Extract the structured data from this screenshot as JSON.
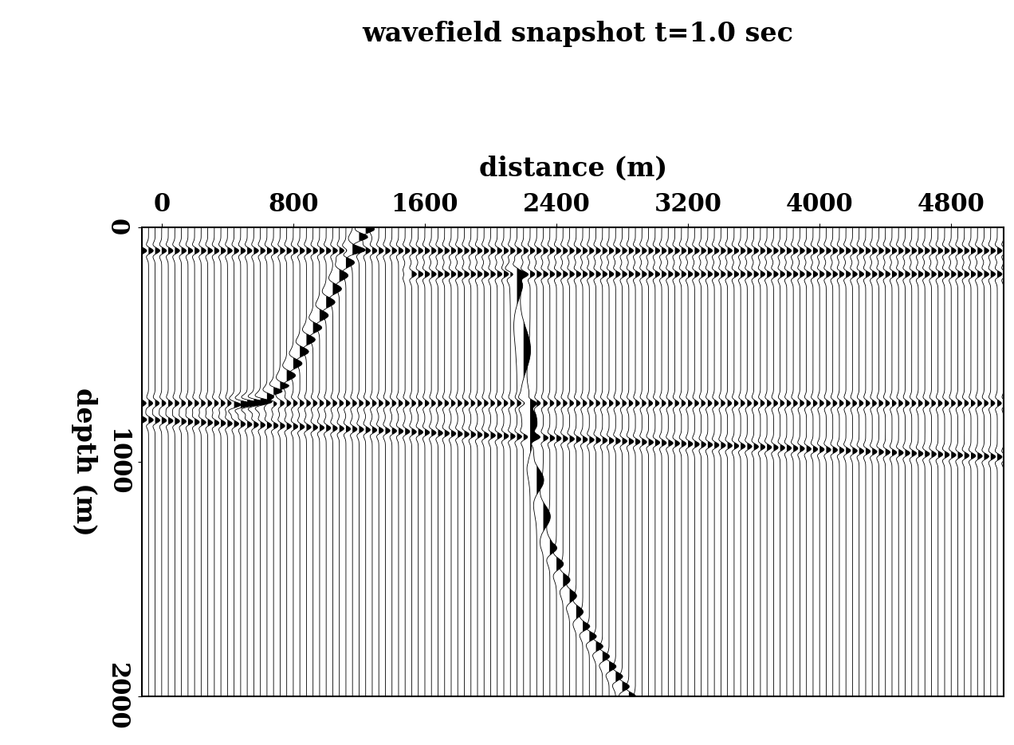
{
  "chart_data": {
    "type": "wiggle",
    "title": "wavefield snapshot t=1.0 sec",
    "xlabel": "distance (m)",
    "ylabel": "depth (m)",
    "xlim": [
      -120,
      5120
    ],
    "ylim": [
      2000,
      0
    ],
    "xticks": [
      0,
      800,
      1600,
      2400,
      3200,
      4000,
      4800
    ],
    "yticks": [
      0,
      1000,
      2000
    ],
    "trace_spacing": 40,
    "color": "#000000",
    "grid": false,
    "events": [
      {
        "x": [
          -120,
          5120
        ],
        "depth": [
          100,
          100
        ],
        "amplitude": 0.8
      },
      {
        "x": [
          1500,
          5120
        ],
        "depth": [
          200,
          200
        ],
        "amplitude": 0.8
      },
      {
        "x": [
          -120,
          5120
        ],
        "depth": [
          750,
          750
        ],
        "amplitude": 0.7
      },
      {
        "x": [
          -120,
          2400,
          5120
        ],
        "depth": [
          820,
          900,
          980
        ],
        "amplitude": 0.8
      },
      {
        "x": [
          1250,
          1190,
          950,
          730,
          610,
          450
        ],
        "depth": [
          0,
          50,
          390,
          670,
          740,
          760
        ],
        "amplitude": 1.5
      },
      {
        "x": [
          2150,
          2160,
          2210,
          2260,
          2350,
          2550,
          2840
        ],
        "depth": [
          180,
          210,
          600,
          1000,
          1350,
          1690,
          2000
        ],
        "amplitude": 1.2
      }
    ]
  }
}
